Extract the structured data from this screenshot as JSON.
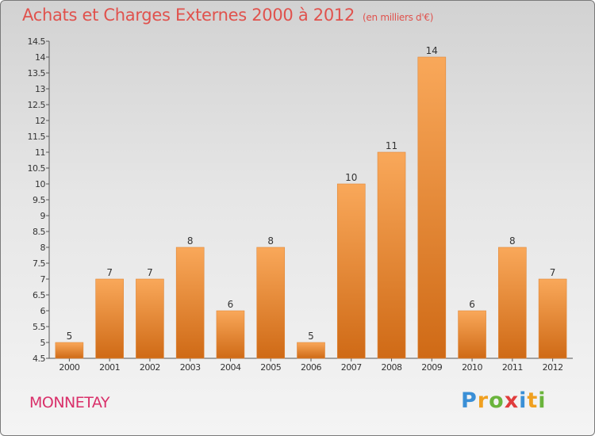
{
  "title": "Achats et Charges Externes 2000 à 2012",
  "unit": "(en milliers d'€)",
  "commune": "MONNETAY",
  "logo": {
    "letters": [
      "P",
      "r",
      "o",
      "x",
      "i",
      "t",
      "i"
    ],
    "colors": [
      "#3a8fd6",
      "#f0a020",
      "#6ab43c",
      "#e03c3c",
      "#3a8fd6",
      "#f0a020",
      "#6ab43c"
    ]
  },
  "chart_data": {
    "type": "bar",
    "categories": [
      "2000",
      "2001",
      "2002",
      "2003",
      "2004",
      "2005",
      "2006",
      "2007",
      "2008",
      "2009",
      "2010",
      "2011",
      "2012"
    ],
    "values": [
      5,
      7,
      7,
      8,
      6,
      8,
      5,
      10,
      11,
      14,
      6,
      8,
      7
    ],
    "ylim": [
      4.5,
      14.5
    ],
    "yticks": [
      "4.5",
      "5",
      "5.5",
      "6",
      "6.5",
      "7",
      "7.5",
      "8",
      "8.5",
      "9",
      "9.5",
      "10",
      "10.5",
      "11",
      "11.5",
      "12",
      "12.5",
      "13",
      "13.5",
      "14",
      "14.5"
    ],
    "bar_color": "#f08a2a",
    "grid": false
  }
}
